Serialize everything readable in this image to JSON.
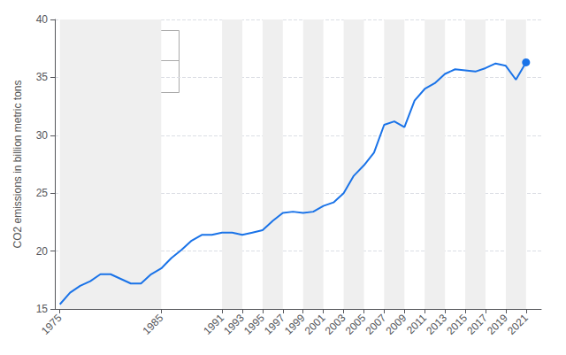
{
  "chart_data": {
    "type": "line",
    "ylabel": "CO2 emissions in billion metric tons",
    "x": [
      1975,
      1976,
      1977,
      1978,
      1979,
      1980,
      1981,
      1982,
      1983,
      1984,
      1985,
      1986,
      1987,
      1988,
      1989,
      1990,
      1991,
      1992,
      1993,
      1994,
      1995,
      1996,
      1997,
      1998,
      1999,
      2000,
      2001,
      2002,
      2003,
      2004,
      2005,
      2006,
      2007,
      2008,
      2009,
      2010,
      2011,
      2012,
      2013,
      2014,
      2015,
      2016,
      2017,
      2018,
      2019,
      2020,
      2021
    ],
    "values": [
      15.4,
      16.4,
      17.0,
      17.4,
      18.0,
      18.0,
      17.6,
      17.2,
      17.2,
      18.0,
      18.5,
      19.4,
      20.1,
      20.9,
      21.4,
      21.4,
      21.6,
      21.6,
      21.4,
      21.6,
      21.8,
      22.6,
      23.3,
      23.4,
      23.3,
      23.4,
      23.9,
      24.2,
      25.0,
      26.5,
      27.4,
      28.5,
      30.9,
      31.2,
      30.7,
      33.0,
      34.0,
      34.5,
      35.3,
      35.7,
      35.6,
      35.5,
      35.8,
      36.2,
      36.0,
      34.8,
      36.3
    ],
    "color": "#1a73e8",
    "xlim": [
      1974.5,
      2022.5
    ],
    "xticks": [
      1975,
      1985,
      1991,
      1993,
      1995,
      1997,
      1999,
      2001,
      2003,
      2005,
      2007,
      2009,
      2011,
      2013,
      2015,
      2017,
      2019,
      2021
    ],
    "ylim": [
      15,
      40
    ],
    "yticks": [
      15,
      20,
      25,
      30,
      35,
      40
    ],
    "grid": true,
    "annotations": [
      "2021",
      "36.3"
    ]
  }
}
